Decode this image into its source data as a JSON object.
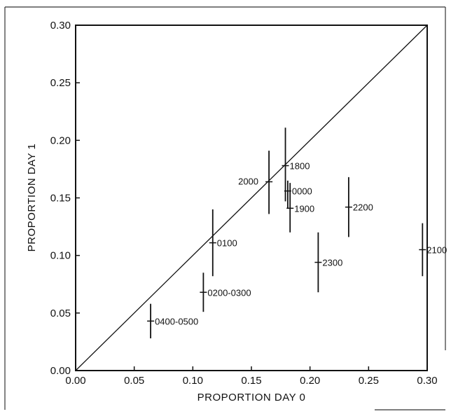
{
  "chart_data": {
    "type": "scatter",
    "title": "",
    "xlabel": "PROPORTION DAY 0",
    "ylabel": "PROPORTION DAY 1",
    "xlim": [
      0,
      0.3
    ],
    "ylim": [
      0,
      0.3
    ],
    "x_ticks": [
      "0.00",
      "0.05",
      "0.10",
      "0.15",
      "0.20",
      "0.25",
      "0.30"
    ],
    "y_ticks": [
      "0.00",
      "0.05",
      "0.10",
      "0.15",
      "0.20",
      "0.25",
      "0.30"
    ],
    "reference_line": "y = x",
    "grid": false,
    "points": [
      {
        "label": "0400-0500",
        "x": 0.064,
        "y": 0.043,
        "ylow": 0.028,
        "yhigh": 0.058
      },
      {
        "label": "0200-0300",
        "x": 0.109,
        "y": 0.068,
        "ylow": 0.051,
        "yhigh": 0.085
      },
      {
        "label": "0100",
        "x": 0.117,
        "y": 0.111,
        "ylow": 0.082,
        "yhigh": 0.14
      },
      {
        "label": "2000",
        "x": 0.165,
        "y": 0.164,
        "ylow": 0.136,
        "yhigh": 0.191
      },
      {
        "label": "1800",
        "x": 0.179,
        "y": 0.178,
        "ylow": 0.147,
        "yhigh": 0.211
      },
      {
        "label": "0000",
        "x": 0.181,
        "y": 0.156,
        "ylow": 0.141,
        "yhigh": 0.165
      },
      {
        "label": "1900",
        "x": 0.183,
        "y": 0.141,
        "ylow": 0.12,
        "yhigh": 0.163
      },
      {
        "label": "2300",
        "x": 0.207,
        "y": 0.094,
        "ylow": 0.068,
        "yhigh": 0.12
      },
      {
        "label": "2200",
        "x": 0.233,
        "y": 0.142,
        "ylow": 0.116,
        "yhigh": 0.168
      },
      {
        "label": "2100",
        "x": 0.296,
        "y": 0.105,
        "ylow": 0.082,
        "yhigh": 0.128
      }
    ]
  }
}
